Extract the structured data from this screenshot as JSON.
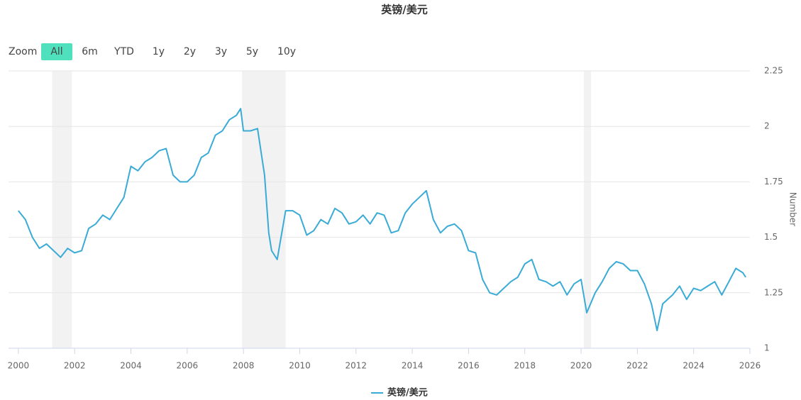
{
  "chart_data": {
    "type": "line",
    "title": "英镑/美元",
    "range_selector": {
      "label": "Zoom",
      "buttons": [
        "All",
        "6m",
        "YTD",
        "1y",
        "2y",
        "3y",
        "5y",
        "10y"
      ],
      "selected": "All"
    },
    "y_axis_label": "Number",
    "xlim": [
      1999.65,
      2026
    ],
    "xticks": [
      2000,
      2002,
      2004,
      2006,
      2008,
      2010,
      2012,
      2014,
      2016,
      2018,
      2020,
      2022,
      2024,
      2026
    ],
    "ylim": [
      1,
      2.25
    ],
    "yticks": [
      1,
      1.25,
      1.5,
      1.75,
      2,
      2.25
    ],
    "grid": true,
    "bands": [
      [
        2001.2,
        2001.9
      ],
      [
        2007.95,
        2009.5
      ],
      [
        2020.1,
        2020.35
      ]
    ],
    "band_color": "#f2f2f2",
    "series": [
      {
        "name": "英镑/美元",
        "color": "#3aabd6",
        "x": [
          2000.0,
          2000.25,
          2000.5,
          2000.75,
          2001.0,
          2001.25,
          2001.5,
          2001.75,
          2002.0,
          2002.25,
          2002.5,
          2002.75,
          2003.0,
          2003.25,
          2003.5,
          2003.75,
          2004.0,
          2004.25,
          2004.5,
          2004.75,
          2005.0,
          2005.25,
          2005.5,
          2005.75,
          2006.0,
          2006.25,
          2006.5,
          2006.75,
          2007.0,
          2007.25,
          2007.5,
          2007.75,
          2007.9,
          2008.0,
          2008.25,
          2008.5,
          2008.75,
          2008.9,
          2009.0,
          2009.2,
          2009.5,
          2009.75,
          2010.0,
          2010.25,
          2010.5,
          2010.75,
          2011.0,
          2011.25,
          2011.5,
          2011.75,
          2012.0,
          2012.25,
          2012.5,
          2012.75,
          2013.0,
          2013.25,
          2013.5,
          2013.75,
          2014.0,
          2014.25,
          2014.5,
          2014.75,
          2015.0,
          2015.25,
          2015.5,
          2015.75,
          2016.0,
          2016.25,
          2016.5,
          2016.75,
          2017.0,
          2017.25,
          2017.5,
          2017.75,
          2018.0,
          2018.25,
          2018.5,
          2018.75,
          2019.0,
          2019.25,
          2019.5,
          2019.75,
          2020.0,
          2020.2,
          2020.5,
          2020.75,
          2021.0,
          2021.25,
          2021.5,
          2021.75,
          2022.0,
          2022.25,
          2022.5,
          2022.7,
          2022.9,
          2023.25,
          2023.5,
          2023.75,
          2024.0,
          2024.25,
          2024.5,
          2024.75,
          2025.0,
          2025.25,
          2025.5,
          2025.75,
          2025.85
        ],
        "values": [
          1.62,
          1.58,
          1.5,
          1.45,
          1.47,
          1.44,
          1.41,
          1.45,
          1.43,
          1.44,
          1.54,
          1.56,
          1.6,
          1.58,
          1.63,
          1.68,
          1.82,
          1.8,
          1.84,
          1.86,
          1.89,
          1.9,
          1.78,
          1.75,
          1.75,
          1.78,
          1.86,
          1.88,
          1.96,
          1.98,
          2.03,
          2.05,
          2.08,
          1.98,
          1.98,
          1.99,
          1.78,
          1.52,
          1.44,
          1.4,
          1.62,
          1.62,
          1.6,
          1.51,
          1.53,
          1.58,
          1.56,
          1.63,
          1.61,
          1.56,
          1.57,
          1.6,
          1.56,
          1.61,
          1.6,
          1.52,
          1.53,
          1.61,
          1.65,
          1.68,
          1.71,
          1.58,
          1.52,
          1.55,
          1.56,
          1.53,
          1.44,
          1.43,
          1.31,
          1.25,
          1.24,
          1.27,
          1.3,
          1.32,
          1.38,
          1.4,
          1.31,
          1.3,
          1.28,
          1.3,
          1.24,
          1.29,
          1.31,
          1.16,
          1.25,
          1.3,
          1.36,
          1.39,
          1.38,
          1.35,
          1.35,
          1.29,
          1.2,
          1.08,
          1.2,
          1.24,
          1.28,
          1.22,
          1.27,
          1.26,
          1.28,
          1.3,
          1.24,
          1.3,
          1.36,
          1.34,
          1.32
        ]
      }
    ]
  }
}
